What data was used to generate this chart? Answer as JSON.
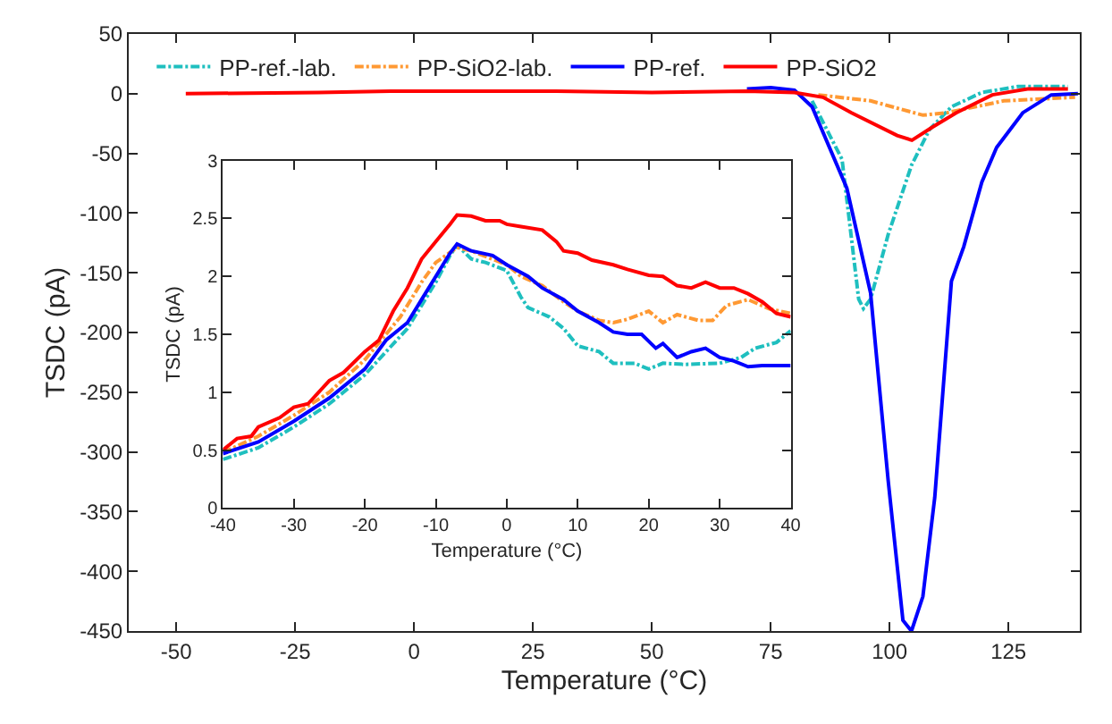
{
  "chart_data": [
    {
      "type": "line",
      "xlabel": "Temperature (°C)",
      "ylabel": "TSDC (pA)",
      "xlim": [
        -60,
        140
      ],
      "ylim": [
        -450,
        50
      ],
      "xticks": [
        -50,
        -25,
        0,
        25,
        50,
        75,
        100,
        125
      ],
      "yticks": [
        -450,
        -400,
        -350,
        -300,
        -250,
        -200,
        -150,
        -100,
        -50,
        0,
        50
      ],
      "legend": "top left",
      "series": [
        {
          "name": "PP-ref.-lab.",
          "color": "#1fbfbf",
          "line_style": "dashed",
          "x": [
            83.7,
            90,
            93.5,
            94.5,
            96,
            99.7,
            104.6,
            108.4,
            113,
            119.4,
            127,
            137.5
          ],
          "values": [
            -6,
            -55,
            -172,
            -180,
            -172,
            -118,
            -60,
            -30,
            -11,
            1,
            6,
            6
          ]
        },
        {
          "name": "PP-SiO2-lab.",
          "color": "#ff9933",
          "line_style": "dashed",
          "x": [
            85,
            96,
            107,
            112,
            124,
            139
          ],
          "values": [
            -1,
            -6,
            -18,
            -16,
            -6,
            -3
          ]
        },
        {
          "name": "PP-ref.",
          "color": "#0000ff",
          "line_style": "solid",
          "x": [
            70,
            75,
            80,
            83.7,
            91,
            96,
            99.7,
            102.8,
            104.6,
            107,
            109.5,
            113,
            115.6,
            119.4,
            122.5,
            128,
            134,
            139.6
          ],
          "values": [
            4,
            5,
            3,
            -11,
            -79,
            -167,
            -324,
            -441,
            -450,
            -421,
            -338,
            -157,
            -128,
            -74,
            -45,
            -16,
            -1,
            0
          ]
        },
        {
          "name": "PP-SiO2",
          "color": "#ff0000",
          "line_style": "solid",
          "x": [
            -48,
            -20,
            -5,
            10,
            30,
            50,
            70,
            80,
            86,
            92,
            101.6,
            104.7,
            109,
            114,
            121.6,
            129,
            137.5
          ],
          "values": [
            0,
            1,
            2,
            2,
            2,
            1,
            2,
            1,
            -3,
            -16,
            -35,
            -39,
            -28,
            -16,
            -1,
            4,
            4
          ]
        }
      ]
    },
    {
      "type": "line",
      "xlabel": "Temperature (°C)",
      "ylabel": "TSDC (pA)",
      "xlim": [
        -40,
        40
      ],
      "ylim": [
        0,
        3
      ],
      "xticks": [
        -40,
        -30,
        -20,
        -10,
        0,
        10,
        20,
        30,
        40
      ],
      "yticks": [
        0,
        0.5,
        1,
        1.5,
        2,
        2.5,
        3
      ],
      "legend": false,
      "series": [
        {
          "color": "#1fbfbf",
          "line_style": "dashed",
          "x": [
            -40,
            -35,
            -30,
            -25,
            -20,
            -17,
            -14,
            -12,
            -10,
            -8,
            -7,
            -5,
            -3,
            0,
            2,
            3,
            6,
            8,
            10,
            13,
            15,
            18,
            20,
            22,
            25,
            30,
            33,
            35,
            38,
            40
          ],
          "values": [
            0.42,
            0.52,
            0.7,
            0.9,
            1.15,
            1.35,
            1.55,
            1.75,
            1.95,
            2.18,
            2.27,
            2.15,
            2.12,
            2.05,
            1.82,
            1.73,
            1.65,
            1.55,
            1.4,
            1.35,
            1.25,
            1.25,
            1.2,
            1.25,
            1.24,
            1.25,
            1.3,
            1.38,
            1.43,
            1.53
          ]
        },
        {
          "color": "#ff9933",
          "line_style": "dashed",
          "x": [
            -40,
            -35,
            -30,
            -25,
            -20,
            -15,
            -12,
            -10,
            -7,
            -5,
            0,
            2,
            5,
            8,
            10,
            13,
            15,
            17,
            20,
            22,
            24,
            27,
            29,
            31,
            34,
            37,
            40
          ],
          "values": [
            0.48,
            0.62,
            0.8,
            1.0,
            1.28,
            1.65,
            1.95,
            2.12,
            2.25,
            2.22,
            2.1,
            2.0,
            1.92,
            1.78,
            1.7,
            1.62,
            1.6,
            1.63,
            1.7,
            1.6,
            1.67,
            1.62,
            1.62,
            1.75,
            1.8,
            1.72,
            1.68
          ]
        },
        {
          "color": "#0000ff",
          "line_style": "solid",
          "x": [
            -40,
            -35,
            -30,
            -25,
            -20,
            -17,
            -14,
            -12,
            -10,
            -8,
            -7,
            -5,
            -2,
            0,
            3,
            5,
            8,
            10,
            13,
            15,
            17,
            19,
            21,
            22,
            24,
            26,
            28,
            30,
            32,
            34,
            36,
            38,
            40
          ],
          "values": [
            0.47,
            0.57,
            0.75,
            0.95,
            1.2,
            1.45,
            1.6,
            1.8,
            2.0,
            2.2,
            2.28,
            2.22,
            2.18,
            2.1,
            2.0,
            1.9,
            1.8,
            1.7,
            1.6,
            1.52,
            1.5,
            1.5,
            1.38,
            1.42,
            1.3,
            1.35,
            1.38,
            1.3,
            1.27,
            1.22,
            1.23,
            1.23,
            1.23
          ]
        },
        {
          "color": "#ff0000",
          "line_style": "solid",
          "x": [
            -40,
            -38,
            -36,
            -35,
            -32,
            -30,
            -28,
            -25,
            -23,
            -20,
            -18,
            -16,
            -14,
            -12,
            -10,
            -8,
            -7,
            -5,
            -3,
            -1,
            0,
            2,
            5,
            7,
            8,
            10,
            12,
            15,
            17,
            20,
            22,
            24,
            26,
            28,
            30,
            32,
            34,
            36,
            38,
            40
          ],
          "values": [
            0.5,
            0.6,
            0.62,
            0.7,
            0.78,
            0.87,
            0.9,
            1.1,
            1.17,
            1.35,
            1.45,
            1.7,
            1.9,
            2.15,
            2.3,
            2.45,
            2.53,
            2.52,
            2.48,
            2.48,
            2.45,
            2.43,
            2.4,
            2.3,
            2.22,
            2.2,
            2.14,
            2.1,
            2.06,
            2.01,
            2.0,
            1.92,
            1.9,
            1.95,
            1.9,
            1.9,
            1.85,
            1.78,
            1.68,
            1.65
          ]
        }
      ]
    }
  ]
}
